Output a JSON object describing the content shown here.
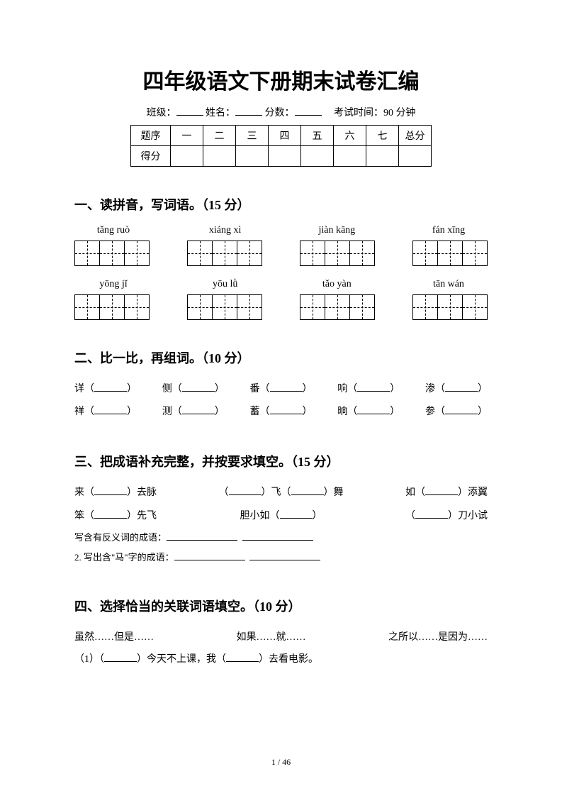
{
  "title": "四年级语文下册期末试卷汇编",
  "meta": {
    "class_label": "班级：",
    "name_label": "姓名：",
    "score_label": "分数：",
    "time_label": "考试时间：",
    "time_value": "90 分钟"
  },
  "score_table": {
    "row1_label": "题序",
    "row2_label": "得分",
    "cols": [
      "一",
      "二",
      "三",
      "四",
      "五",
      "六",
      "七",
      "总分"
    ]
  },
  "s1": {
    "title": "一、读拼音，写词语。（15 分）",
    "row1": [
      "tǎng ruò",
      "xiáng xì",
      "jiàn kāng",
      "fán xīng"
    ],
    "row2": [
      "yōng jǐ",
      "yōu lǜ",
      "tǎo yàn",
      "tān wán"
    ]
  },
  "s2": {
    "title": "二、比一比，再组词。（10 分）",
    "row1": [
      "详",
      "侧",
      "番",
      "响",
      "渗"
    ],
    "row2": [
      "祥",
      "测",
      "蓄",
      "晌",
      "参"
    ]
  },
  "s3": {
    "title": "三、把成语补充完整，并按要求填空。（15 分）",
    "items": [
      {
        "pre": "来（",
        "mid": "）去脉"
      },
      {
        "pre": "（",
        "mid1": "）飞（",
        "mid2": "）舞"
      },
      {
        "pre": "如（",
        "mid": "）添翼"
      },
      {
        "pre": "笨（",
        "mid": "）先飞"
      },
      {
        "pre": "胆小如（",
        "mid": "）"
      },
      {
        "pre": "（",
        "mid": "）刀小试"
      }
    ],
    "sub1": "写含有反义词的成语：",
    "sub2": "2. 写出含\"马\"字的成语："
  },
  "s4": {
    "title": "四、选择恰当的关联词语填空。（10 分）",
    "opts": [
      "虽然……但是……",
      "如果……就……",
      "之所以……是因为……"
    ],
    "q1_pre": "（1）（",
    "q1_mid": "）今天不上课，我（",
    "q1_suf": "）去看电影。"
  },
  "footer": "1 / 46"
}
